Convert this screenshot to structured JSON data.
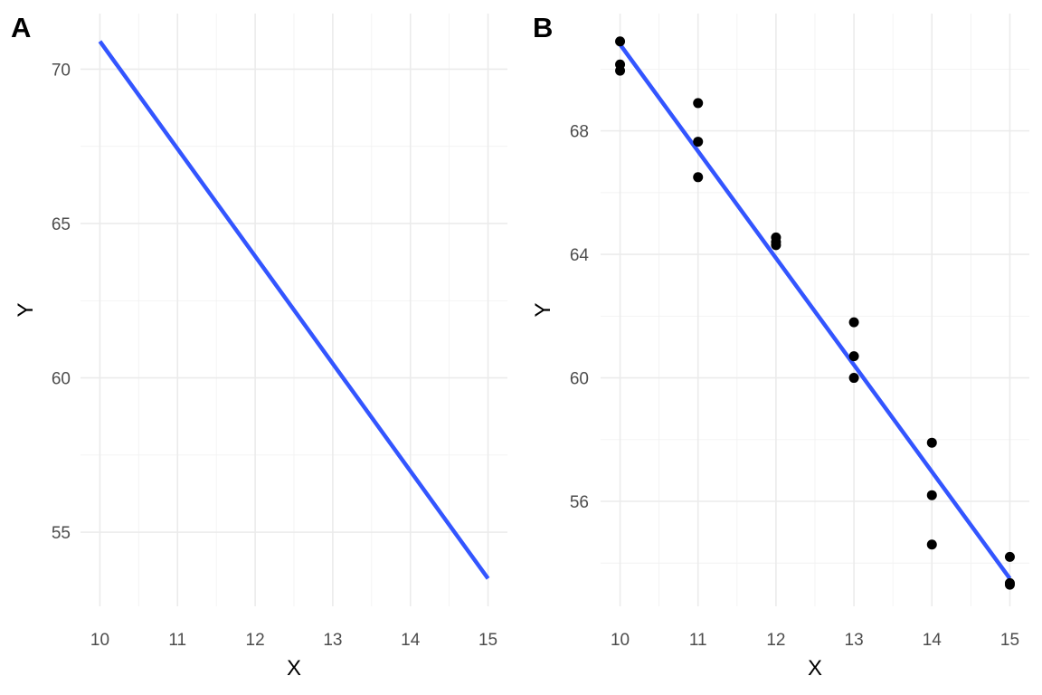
{
  "chart_data": [
    {
      "panel": "A",
      "type": "line",
      "xlabel": "X",
      "ylabel": "Y",
      "xlim": [
        9.75,
        15.25
      ],
      "ylim": [
        52.6,
        71.8
      ],
      "x_ticks": [
        10,
        11,
        12,
        13,
        14,
        15
      ],
      "y_ticks": [
        55,
        60,
        65,
        70
      ],
      "grid": true,
      "series": [
        {
          "x": [
            10,
            15
          ],
          "y": [
            70.9,
            53.5
          ],
          "color": "#3355ff"
        }
      ]
    },
    {
      "panel": "B",
      "type": "scatter",
      "xlabel": "X",
      "ylabel": "Y",
      "xlim": [
        9.75,
        15.25
      ],
      "ylim": [
        52.6,
        71.8
      ],
      "x_ticks": [
        10,
        11,
        12,
        13,
        14,
        15
      ],
      "y_ticks": [
        56,
        60,
        64,
        68
      ],
      "grid": true,
      "points": {
        "x": [
          10,
          10,
          10,
          11,
          11,
          11,
          12,
          12,
          12,
          13,
          13,
          13,
          14,
          14,
          14,
          15,
          15,
          15
        ],
        "y": [
          70.9,
          70.15,
          69.95,
          68.9,
          67.65,
          66.5,
          64.55,
          64.4,
          64.3,
          61.8,
          60.7,
          60.0,
          57.9,
          56.2,
          54.6,
          54.2,
          53.35,
          53.3
        ],
        "color": "#000000"
      },
      "series": [
        {
          "x": [
            10,
            15
          ],
          "y": [
            70.8,
            53.5
          ],
          "color": "#3355ff"
        }
      ]
    }
  ]
}
